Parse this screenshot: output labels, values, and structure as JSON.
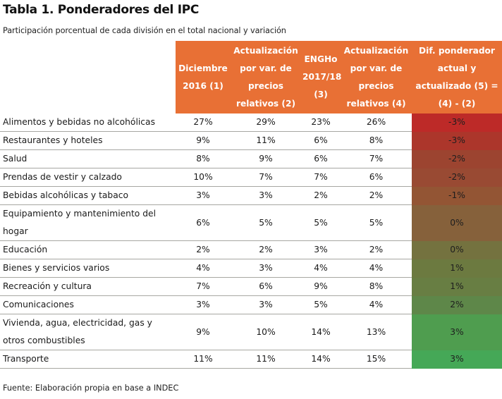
{
  "title": "Tabla 1. Ponderadores del IPC",
  "subtitle": "Participación porcentual de cada división en el total nacional y variación",
  "colors": {
    "header_bg": "#e87035",
    "header_text": "#ffffff",
    "diff_scale": [
      "#bd2a28",
      "#ac362b",
      "#9c4430",
      "#994a33",
      "#935534",
      "#86613b",
      "#74723f",
      "#6c7a40",
      "#687e43",
      "#5e8749",
      "#4f9d4f",
      "#45a857"
    ]
  },
  "table": {
    "headers": [
      "",
      "Diciembre 2016 (1)",
      "Actualización por var. de precios relativos (2)",
      "ENGHo 2017/18 (3)",
      "Actualización por var. de precios relativos (4)",
      "Dif. ponderador actual y actualizado (5) = (4) - (2)"
    ],
    "rows": [
      {
        "division": "Alimentos y bebidas no alcohólicas",
        "dic2016": "27%",
        "act2": "29%",
        "engho": "23%",
        "act4": "26%",
        "diff": "-3%"
      },
      {
        "division": "Restaurantes y hoteles",
        "dic2016": "9%",
        "act2": "11%",
        "engho": "6%",
        "act4": "8%",
        "diff": "-3%"
      },
      {
        "division": "Salud",
        "dic2016": "8%",
        "act2": "9%",
        "engho": "6%",
        "act4": "7%",
        "diff": "-2%"
      },
      {
        "division": "Prendas de vestir y calzado",
        "dic2016": "10%",
        "act2": "7%",
        "engho": "7%",
        "act4": "6%",
        "diff": "-2%"
      },
      {
        "division": "Bebidas alcohólicas y tabaco",
        "dic2016": "3%",
        "act2": "3%",
        "engho": "2%",
        "act4": "2%",
        "diff": "-1%"
      },
      {
        "division": "Equipamiento y mantenimiento del hogar",
        "dic2016": "6%",
        "act2": "5%",
        "engho": "5%",
        "act4": "5%",
        "diff": "0%"
      },
      {
        "division": "Educación",
        "dic2016": "2%",
        "act2": "2%",
        "engho": "3%",
        "act4": "2%",
        "diff": "0%"
      },
      {
        "division": "Bienes y servicios varios",
        "dic2016": "4%",
        "act2": "3%",
        "engho": "4%",
        "act4": "4%",
        "diff": "1%"
      },
      {
        "division": "Recreación y cultura",
        "dic2016": "7%",
        "act2": "6%",
        "engho": "9%",
        "act4": "8%",
        "diff": "1%"
      },
      {
        "division": "Comunicaciones",
        "dic2016": "3%",
        "act2": "3%",
        "engho": "5%",
        "act4": "4%",
        "diff": "2%"
      },
      {
        "division": "Vivienda, agua, electricidad, gas y otros combustibles",
        "dic2016": "9%",
        "act2": "10%",
        "engho": "14%",
        "act4": "13%",
        "diff": "3%"
      },
      {
        "division": "Transporte",
        "dic2016": "11%",
        "act2": "11%",
        "engho": "14%",
        "act4": "15%",
        "diff": "3%"
      }
    ]
  },
  "footer": "Fuente: Elaboración propia en base a INDEC"
}
